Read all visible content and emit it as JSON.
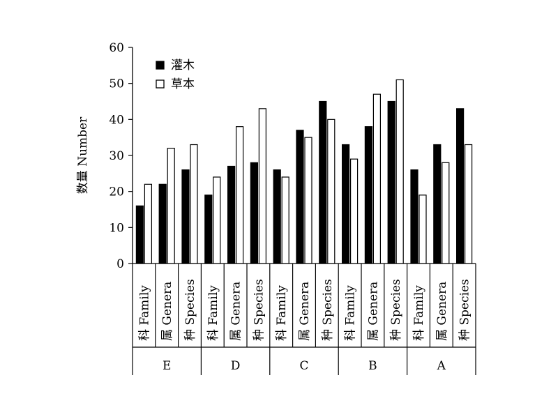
{
  "chart_data": {
    "type": "bar",
    "ylabel": "数量 Number",
    "ylim": [
      0,
      60
    ],
    "yticks": [
      0,
      10,
      20,
      30,
      40,
      50,
      60
    ],
    "grid": false,
    "legend_position": "top-left",
    "categories": [
      {
        "label": "科 Family",
        "group": "E"
      },
      {
        "label": "属 Genera",
        "group": "E"
      },
      {
        "label": "种 Species",
        "group": "E"
      },
      {
        "label": "科 Family",
        "group": "D"
      },
      {
        "label": "属 Genera",
        "group": "D"
      },
      {
        "label": "种 Species",
        "group": "D"
      },
      {
        "label": "科 Family",
        "group": "C"
      },
      {
        "label": "属 Genera",
        "group": "C"
      },
      {
        "label": "种 Species",
        "group": "C"
      },
      {
        "label": "科 Family",
        "group": "B"
      },
      {
        "label": "属 Genera",
        "group": "B"
      },
      {
        "label": "种 Species",
        "group": "B"
      },
      {
        "label": "科 Family",
        "group": "A"
      },
      {
        "label": "属 Genera",
        "group": "A"
      },
      {
        "label": "种 Species",
        "group": "A"
      }
    ],
    "groups": [
      "E",
      "D",
      "C",
      "B",
      "A"
    ],
    "series": [
      {
        "name": "灌木",
        "color": "#000000",
        "values": [
          16,
          22,
          26,
          19,
          27,
          28,
          26,
          37,
          45,
          33,
          38,
          45,
          26,
          33,
          43
        ]
      },
      {
        "name": "草本",
        "color": "#ffffff",
        "values": [
          22,
          32,
          33,
          24,
          38,
          43,
          24,
          35,
          40,
          29,
          47,
          51,
          19,
          28,
          33
        ]
      }
    ]
  }
}
